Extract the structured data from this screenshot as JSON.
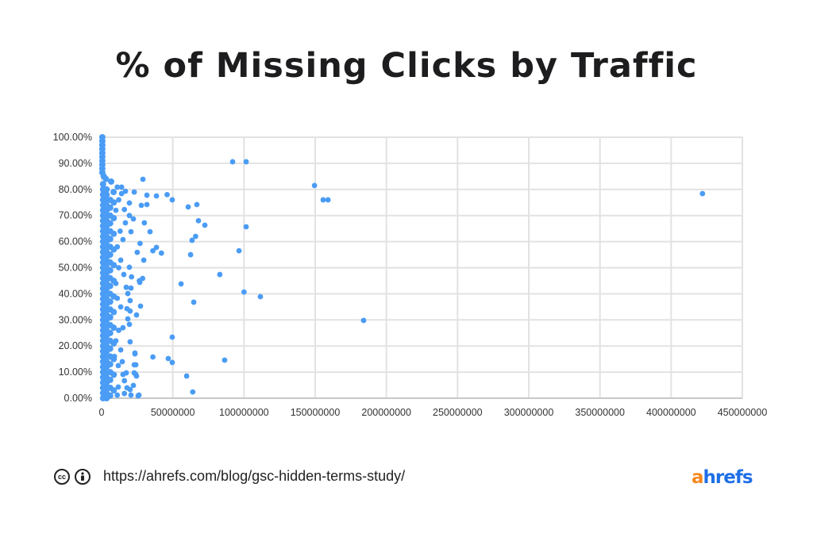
{
  "chart_data": {
    "type": "scatter",
    "title": "% of Missing Clicks by Traffic",
    "xlabel": "",
    "ylabel": "",
    "xlim": [
      0,
      450000000
    ],
    "ylim": [
      0,
      100
    ],
    "grid": true,
    "x_ticks": [
      "0",
      "50000000",
      "100000000",
      "150000000",
      "200000000",
      "250000000",
      "300000000",
      "350000000",
      "400000000",
      "450000000"
    ],
    "y_ticks": [
      "0.00%",
      "10.00%",
      "20.00%",
      "30.00%",
      "40.00%",
      "50.00%",
      "60.00%",
      "70.00%",
      "80.00%",
      "90.00%",
      "100.00%"
    ],
    "x_unit_note": "points below are [traffic in millions, % missing clicks]",
    "color": "#4a9cf5",
    "points": [
      [
        92,
        90.6
      ],
      [
        101.5,
        90.6
      ],
      [
        29,
        83.9
      ],
      [
        149.5,
        81.5
      ],
      [
        155.6,
        76
      ],
      [
        159,
        76
      ],
      [
        422,
        78.4
      ],
      [
        46,
        78
      ],
      [
        31.8,
        77.8
      ],
      [
        38.5,
        77.5
      ],
      [
        49.6,
        76
      ],
      [
        66.9,
        74.2
      ],
      [
        60.8,
        73.3
      ],
      [
        27.9,
        73.9
      ],
      [
        31.8,
        74.2
      ],
      [
        68,
        68
      ],
      [
        72.5,
        66.3
      ],
      [
        101.5,
        65.7
      ],
      [
        30,
        67.2
      ],
      [
        34,
        63.8
      ],
      [
        66,
        62
      ],
      [
        63.5,
        60.5
      ],
      [
        27,
        59.3
      ],
      [
        38.5,
        57.8
      ],
      [
        36,
        56.5
      ],
      [
        42,
        55.6
      ],
      [
        62.5,
        55
      ],
      [
        96.5,
        56.5
      ],
      [
        29.6,
        52.9
      ],
      [
        83,
        47.4
      ],
      [
        28.8,
        45.9
      ],
      [
        26.5,
        45
      ],
      [
        55.8,
        43.8
      ],
      [
        100,
        40.7
      ],
      [
        111.5,
        38.9
      ],
      [
        64.7,
        36.8
      ],
      [
        27.3,
        35.3
      ],
      [
        184,
        29.8
      ],
      [
        49.6,
        23.4
      ],
      [
        36,
        15.8
      ],
      [
        46.8,
        15.2
      ],
      [
        49.6,
        13.7
      ],
      [
        86.4,
        14.6
      ],
      [
        23.4,
        17
      ],
      [
        22.9,
        12.8
      ],
      [
        59.7,
        8.5
      ],
      [
        24,
        9.1
      ],
      [
        64,
        2.4
      ],
      [
        26.2,
        1.2
      ],
      [
        22.9,
        79
      ],
      [
        19.5,
        74.8
      ],
      [
        16,
        72.3
      ],
      [
        19.5,
        70
      ],
      [
        22.3,
        68.7
      ],
      [
        16.7,
        67.2
      ],
      [
        20.6,
        63.8
      ],
      [
        15,
        60.8
      ],
      [
        25,
        55.9
      ],
      [
        19.5,
        50.2
      ],
      [
        15.6,
        47.4
      ],
      [
        21,
        46.5
      ],
      [
        26.8,
        44.4
      ],
      [
        20.6,
        42.2
      ],
      [
        17.3,
        42.5
      ],
      [
        18.4,
        40.1
      ],
      [
        11,
        38.3
      ],
      [
        20,
        37.4
      ],
      [
        13.4,
        35
      ],
      [
        17.8,
        34.3
      ],
      [
        20,
        33.4
      ],
      [
        24.5,
        31.9
      ],
      [
        18.4,
        30.4
      ],
      [
        19.5,
        28.3
      ],
      [
        15,
        27
      ],
      [
        20,
        21.6
      ],
      [
        13.4,
        18.5
      ],
      [
        23.4,
        17.3
      ],
      [
        14.5,
        14
      ],
      [
        24,
        12.8
      ],
      [
        11.7,
        12.5
      ],
      [
        17.3,
        9.7
      ],
      [
        22.9,
        9.7
      ],
      [
        15,
        9.1
      ],
      [
        24.5,
        8.5
      ],
      [
        16,
        6.7
      ],
      [
        22.3,
        4.9
      ],
      [
        11.7,
        4.3
      ],
      [
        17.8,
        4
      ],
      [
        20,
        3.3
      ],
      [
        16,
        1.8
      ],
      [
        20.6,
        1.2
      ],
      [
        25.6,
        0.9
      ],
      [
        11,
        1.2
      ],
      [
        13.4,
        52.9
      ],
      [
        6.7,
        83
      ],
      [
        11,
        80.9
      ],
      [
        14,
        80.9
      ],
      [
        8.4,
        79
      ],
      [
        14,
        78.4
      ],
      [
        16.7,
        79.3
      ],
      [
        12,
        76
      ],
      [
        10,
        72
      ],
      [
        13,
        64
      ],
      [
        11,
        58
      ],
      [
        12,
        50
      ],
      [
        10,
        44
      ],
      [
        12,
        26
      ],
      [
        10,
        22
      ],
      [
        9,
        16
      ],
      [
        0.5,
        100
      ],
      [
        0.5,
        98.5
      ],
      [
        0.5,
        97
      ],
      [
        0.5,
        95.5
      ],
      [
        0.5,
        94
      ],
      [
        0.5,
        92.5
      ],
      [
        0.5,
        91
      ],
      [
        0.5,
        89.5
      ],
      [
        0.5,
        88
      ],
      [
        0.5,
        86.5
      ],
      [
        1.5,
        85
      ],
      [
        3,
        84
      ],
      [
        1,
        0
      ],
      [
        1,
        2
      ],
      [
        1,
        4
      ],
      [
        1,
        6
      ],
      [
        1,
        8
      ],
      [
        1,
        10
      ],
      [
        1,
        12
      ],
      [
        1,
        14
      ],
      [
        1,
        16
      ],
      [
        1,
        18
      ],
      [
        1,
        20
      ],
      [
        1,
        22
      ],
      [
        1,
        24
      ],
      [
        1,
        26
      ],
      [
        1,
        28
      ],
      [
        1,
        30
      ],
      [
        1,
        32
      ],
      [
        1,
        34
      ],
      [
        1,
        36
      ],
      [
        1,
        38
      ],
      [
        1,
        40
      ],
      [
        1,
        42
      ],
      [
        1,
        44
      ],
      [
        1,
        46
      ],
      [
        1,
        48
      ],
      [
        1,
        50
      ],
      [
        1,
        52
      ],
      [
        1,
        54
      ],
      [
        1,
        56
      ],
      [
        1,
        58
      ],
      [
        1,
        60
      ],
      [
        1,
        62
      ],
      [
        1,
        64
      ],
      [
        1,
        66
      ],
      [
        1,
        68
      ],
      [
        1,
        70
      ],
      [
        1,
        72
      ],
      [
        1,
        74
      ],
      [
        1,
        76
      ],
      [
        1,
        78
      ],
      [
        1,
        80
      ],
      [
        1,
        82
      ],
      [
        3.5,
        0
      ],
      [
        3.5,
        2
      ],
      [
        3.5,
        4
      ],
      [
        3.5,
        6
      ],
      [
        3.5,
        8
      ],
      [
        3.5,
        10
      ],
      [
        3.5,
        12
      ],
      [
        3.5,
        14
      ],
      [
        3.5,
        16
      ],
      [
        3.5,
        18
      ],
      [
        3.5,
        20
      ],
      [
        3.5,
        22
      ],
      [
        3.5,
        24
      ],
      [
        3.5,
        26
      ],
      [
        3.5,
        28
      ],
      [
        3.5,
        30
      ],
      [
        3.5,
        32
      ],
      [
        3.5,
        34
      ],
      [
        3.5,
        36
      ],
      [
        3.5,
        38
      ],
      [
        3.5,
        40
      ],
      [
        3.5,
        42
      ],
      [
        3.5,
        44
      ],
      [
        3.5,
        46
      ],
      [
        3.5,
        48
      ],
      [
        3.5,
        50
      ],
      [
        3.5,
        52
      ],
      [
        3.5,
        54
      ],
      [
        3.5,
        56
      ],
      [
        3.5,
        58
      ],
      [
        3.5,
        60
      ],
      [
        3.5,
        62
      ],
      [
        3.5,
        64
      ],
      [
        3.5,
        66
      ],
      [
        3.5,
        68
      ],
      [
        3.5,
        70
      ],
      [
        3.5,
        72
      ],
      [
        3.5,
        74
      ],
      [
        3.5,
        76
      ],
      [
        3.5,
        78
      ],
      [
        3.5,
        80
      ],
      [
        6,
        1
      ],
      [
        6,
        4
      ],
      [
        6,
        7
      ],
      [
        6,
        10
      ],
      [
        6,
        13
      ],
      [
        6,
        16
      ],
      [
        6,
        19
      ],
      [
        6,
        22
      ],
      [
        6,
        25
      ],
      [
        6,
        28
      ],
      [
        6,
        31
      ],
      [
        6,
        34
      ],
      [
        6,
        37
      ],
      [
        6,
        40
      ],
      [
        6,
        43
      ],
      [
        6,
        46
      ],
      [
        6,
        49
      ],
      [
        6,
        52
      ],
      [
        6,
        55
      ],
      [
        6,
        58
      ],
      [
        6,
        61
      ],
      [
        6,
        64
      ],
      [
        6,
        67
      ],
      [
        6,
        70
      ],
      [
        6,
        73
      ],
      [
        6,
        76
      ],
      [
        8.5,
        3
      ],
      [
        8.5,
        9
      ],
      [
        8.5,
        15
      ],
      [
        8.5,
        21
      ],
      [
        8.5,
        27
      ],
      [
        8.5,
        33
      ],
      [
        8.5,
        39
      ],
      [
        8.5,
        45
      ],
      [
        8.5,
        51
      ],
      [
        8.5,
        57
      ],
      [
        8.5,
        63
      ],
      [
        8.5,
        69
      ],
      [
        8.5,
        75
      ]
    ]
  },
  "footer": {
    "license_icons": [
      "creative-commons-icon",
      "attribution-icon"
    ],
    "cc_text": "cc",
    "url": "https://ahrefs.com/blog/gsc-hidden-terms-study/",
    "logo_a": "a",
    "logo_rest": "hrefs"
  }
}
